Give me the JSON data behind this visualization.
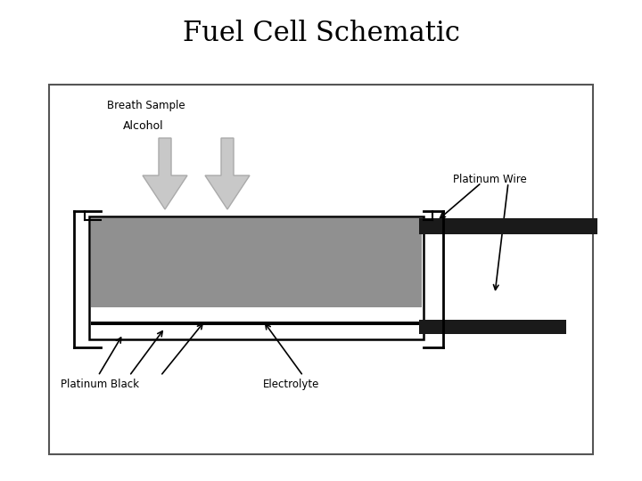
{
  "title": "Fuel Cell Schematic",
  "title_fontsize": 22,
  "bg_color": "#ffffff",
  "label_breath": "Breath Sample",
  "label_alcohol": "Alcohol",
  "label_platinum_wire": "Platinum Wire",
  "label_platinum_black": "Platinum Black",
  "label_electrolyte": "Electrolyte",
  "label_fontsize": 8.5
}
